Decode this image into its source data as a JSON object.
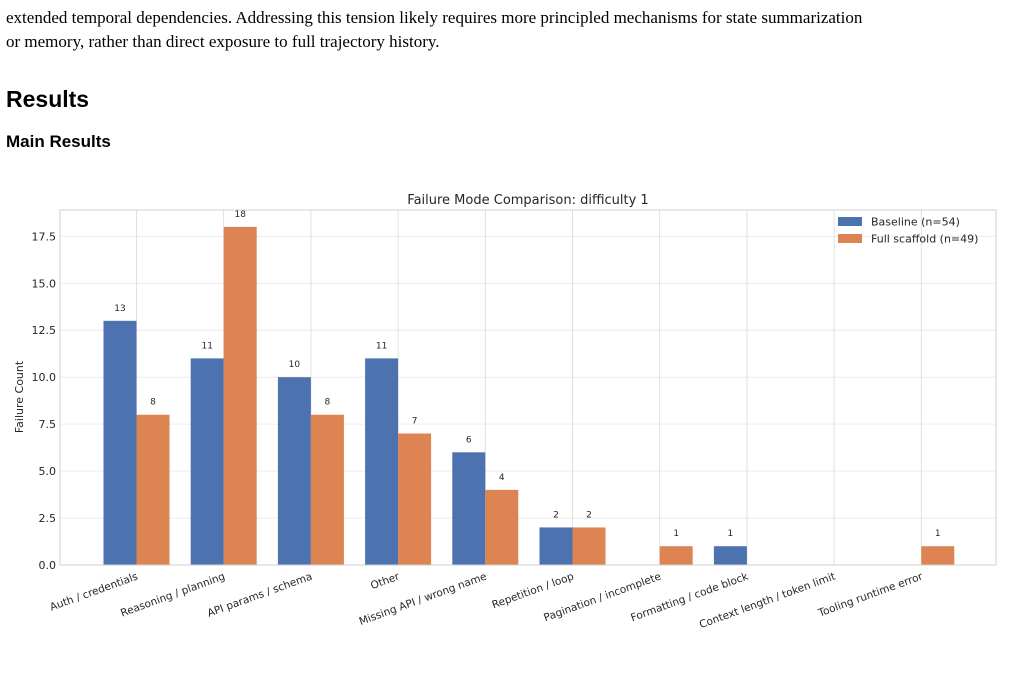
{
  "paper": {
    "paragraph_lines": [
      "extended temporal dependencies. Addressing this tension likely requires more principled mechanisms for state summarization",
      "or memory, rather than direct exposure to full trajectory history."
    ],
    "section_title": "Results",
    "subsection_title": "Main Results"
  },
  "chart_data": {
    "type": "bar",
    "title": "Failure Mode Comparison: difficulty 1",
    "xlabel": "",
    "ylabel": "Failure Count",
    "ylim": [
      0,
      18.9
    ],
    "yticks": [
      "0.0",
      "2.5",
      "5.0",
      "7.5",
      "10.0",
      "12.5",
      "15.0",
      "17.5"
    ],
    "grid": true,
    "legend_position": "top-right",
    "categories": [
      "Auth / credentials",
      "Reasoning / planning",
      "API params / schema",
      "Other",
      "Missing API / wrong name",
      "Repetition / loop",
      "Pagination / incomplete",
      "Formatting / code block",
      "Context length / token limit",
      "Tooling runtime error"
    ],
    "series": [
      {
        "name": "Baseline (n=54)",
        "color": "#4c72b0",
        "values": [
          13,
          11,
          10,
          11,
          6,
          2,
          0,
          1,
          0,
          0
        ]
      },
      {
        "name": "Full scaffold (n=49)",
        "color": "#dd8452",
        "values": [
          8,
          18,
          8,
          7,
          4,
          2,
          1,
          0,
          0,
          1
        ]
      }
    ]
  }
}
